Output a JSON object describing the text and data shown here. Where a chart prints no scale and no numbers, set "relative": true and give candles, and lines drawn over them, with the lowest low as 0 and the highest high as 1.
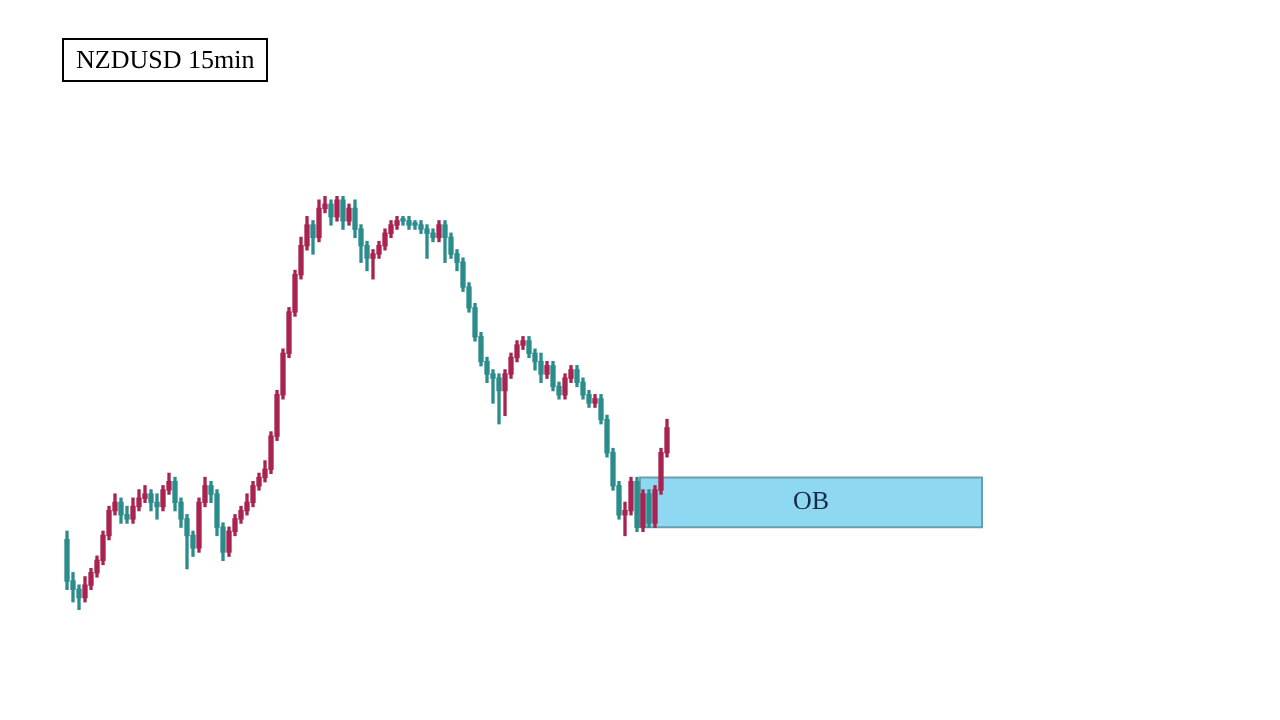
{
  "chart_data": {
    "type": "candlestick",
    "title": "NZDUSD 15min",
    "relative": true,
    "grid": false,
    "legend": false,
    "tick_labels": false,
    "categories": [
      null,
      null,
      null,
      null,
      null,
      null,
      null,
      null,
      null,
      null,
      null,
      null,
      null,
      null,
      null,
      null,
      null,
      null,
      null,
      null,
      null,
      null,
      null,
      null,
      null,
      null,
      null,
      null,
      null,
      null,
      null,
      null,
      null,
      null,
      null,
      null,
      null,
      null,
      null,
      null,
      null,
      null,
      null,
      null,
      null,
      null,
      null,
      null,
      null,
      null,
      null,
      null,
      null,
      null,
      null,
      null,
      null,
      null,
      null,
      null,
      null,
      null,
      null,
      null,
      null,
      null,
      null,
      null,
      null,
      null,
      null,
      null,
      null,
      null,
      null,
      null,
      null,
      null,
      null,
      null,
      null,
      null,
      null,
      null,
      null,
      null,
      null,
      null,
      null,
      null,
      null,
      null,
      null,
      null,
      null,
      null,
      null,
      null,
      null,
      null,
      null
    ],
    "ohlc": [
      [
        0.17,
        0.19,
        0.05,
        0.07
      ],
      [
        0.07,
        0.09,
        0.02,
        0.05
      ],
      [
        0.05,
        0.06,
        0,
        0.03
      ],
      [
        0.03,
        0.08,
        0.02,
        0.06
      ],
      [
        0.06,
        0.1,
        0.05,
        0.09
      ],
      [
        0.09,
        0.13,
        0.08,
        0.12
      ],
      [
        0.12,
        0.19,
        0.11,
        0.18
      ],
      [
        0.18,
        0.25,
        0.17,
        0.24
      ],
      [
        0.24,
        0.28,
        0.23,
        0.26
      ],
      [
        0.26,
        0.27,
        0.21,
        0.23
      ],
      [
        0.23,
        0.25,
        0.21,
        0.22
      ],
      [
        0.22,
        0.27,
        0.21,
        0.25
      ],
      [
        0.25,
        0.29,
        0.24,
        0.27
      ],
      [
        0.27,
        0.3,
        0.26,
        0.28
      ],
      [
        0.28,
        0.29,
        0.24,
        0.26
      ],
      [
        0.26,
        0.28,
        0.22,
        0.25
      ],
      [
        0.25,
        0.3,
        0.24,
        0.29
      ],
      [
        0.29,
        0.33,
        0.28,
        0.31
      ],
      [
        0.31,
        0.32,
        0.24,
        0.26
      ],
      [
        0.26,
        0.27,
        0.2,
        0.22
      ],
      [
        0.22,
        0.23,
        0.1,
        0.18
      ],
      [
        0.18,
        0.19,
        0.13,
        0.15
      ],
      [
        0.15,
        0.27,
        0.14,
        0.26
      ],
      [
        0.26,
        0.32,
        0.25,
        0.3
      ],
      [
        0.3,
        0.31,
        0.26,
        0.28
      ],
      [
        0.28,
        0.29,
        0.18,
        0.2
      ],
      [
        0.2,
        0.21,
        0.12,
        0.14
      ],
      [
        0.14,
        0.2,
        0.13,
        0.19
      ],
      [
        0.19,
        0.23,
        0.18,
        0.22
      ],
      [
        0.22,
        0.25,
        0.21,
        0.24
      ],
      [
        0.24,
        0.28,
        0.23,
        0.26
      ],
      [
        0.26,
        0.31,
        0.25,
        0.3
      ],
      [
        0.3,
        0.33,
        0.29,
        0.32
      ],
      [
        0.32,
        0.36,
        0.31,
        0.34
      ],
      [
        0.34,
        0.43,
        0.33,
        0.42
      ],
      [
        0.42,
        0.53,
        0.41,
        0.52
      ],
      [
        0.52,
        0.63,
        0.51,
        0.62
      ],
      [
        0.62,
        0.73,
        0.61,
        0.72
      ],
      [
        0.72,
        0.82,
        0.71,
        0.81
      ],
      [
        0.81,
        0.9,
        0.8,
        0.88
      ],
      [
        0.88,
        0.95,
        0.87,
        0.93
      ],
      [
        0.93,
        0.94,
        0.86,
        0.9
      ],
      [
        0.9,
        0.99,
        0.89,
        0.97
      ],
      [
        0.97,
        1,
        0.96,
        0.98
      ],
      [
        0.98,
        0.99,
        0.93,
        0.95
      ],
      [
        0.95,
        1,
        0.94,
        0.99
      ],
      [
        0.99,
        1,
        0.92,
        0.94
      ],
      [
        0.94,
        0.98,
        0.93,
        0.97
      ],
      [
        0.97,
        0.99,
        0.9,
        0.92
      ],
      [
        0.92,
        0.93,
        0.84,
        0.88
      ],
      [
        0.88,
        0.89,
        0.82,
        0.85
      ],
      [
        0.85,
        0.87,
        0.8,
        0.86
      ],
      [
        0.86,
        0.89,
        0.85,
        0.88
      ],
      [
        0.88,
        0.92,
        0.87,
        0.91
      ],
      [
        0.91,
        0.94,
        0.9,
        0.93
      ],
      [
        0.93,
        0.95,
        0.92,
        0.94
      ],
      [
        0.94,
        0.95,
        0.93,
        0.94
      ],
      [
        0.94,
        0.95,
        0.92,
        0.93
      ],
      [
        0.93,
        0.94,
        0.92,
        0.93
      ],
      [
        0.93,
        0.94,
        0.91,
        0.92
      ],
      [
        0.92,
        0.93,
        0.85,
        0.91
      ],
      [
        0.91,
        0.92,
        0.89,
        0.9
      ],
      [
        0.9,
        0.94,
        0.89,
        0.93
      ],
      [
        0.93,
        0.94,
        0.84,
        0.9
      ],
      [
        0.9,
        0.91,
        0.85,
        0.86
      ],
      [
        0.86,
        0.87,
        0.82,
        0.84
      ],
      [
        0.84,
        0.85,
        0.77,
        0.78
      ],
      [
        0.78,
        0.79,
        0.72,
        0.73
      ],
      [
        0.73,
        0.74,
        0.65,
        0.66
      ],
      [
        0.66,
        0.67,
        0.59,
        0.6
      ],
      [
        0.6,
        0.61,
        0.55,
        0.57
      ],
      [
        0.57,
        0.58,
        0.5,
        0.56
      ],
      [
        0.56,
        0.57,
        0.45,
        0.53
      ],
      [
        0.53,
        0.58,
        0.47,
        0.57
      ],
      [
        0.57,
        0.62,
        0.56,
        0.61
      ],
      [
        0.61,
        0.65,
        0.6,
        0.64
      ],
      [
        0.64,
        0.66,
        0.63,
        0.65
      ],
      [
        0.65,
        0.66,
        0.61,
        0.62
      ],
      [
        0.62,
        0.63,
        0.58,
        0.6
      ],
      [
        0.6,
        0.62,
        0.55,
        0.57
      ],
      [
        0.57,
        0.6,
        0.56,
        0.59
      ],
      [
        0.59,
        0.6,
        0.53,
        0.54
      ],
      [
        0.54,
        0.55,
        0.51,
        0.52
      ],
      [
        0.52,
        0.57,
        0.51,
        0.56
      ],
      [
        0.56,
        0.59,
        0.55,
        0.58
      ],
      [
        0.58,
        0.59,
        0.54,
        0.55
      ],
      [
        0.55,
        0.56,
        0.51,
        0.52
      ],
      [
        0.52,
        0.53,
        0.49,
        0.5
      ],
      [
        0.5,
        0.52,
        0.49,
        0.51
      ],
      [
        0.51,
        0.52,
        0.45,
        0.46
      ],
      [
        0.46,
        0.47,
        0.37,
        0.38
      ],
      [
        0.38,
        0.39,
        0.29,
        0.3
      ],
      [
        0.3,
        0.31,
        0.22,
        0.23
      ],
      [
        0.23,
        0.26,
        0.18,
        0.24
      ],
      [
        0.24,
        0.32,
        0.23,
        0.31
      ],
      [
        0.31,
        0.32,
        0.19,
        0.2
      ],
      [
        0.2,
        0.29,
        0.19,
        0.28
      ],
      [
        0.28,
        0.29,
        0.2,
        0.21
      ],
      [
        0.21,
        0.3,
        0.2,
        0.29
      ],
      [
        0.29,
        0.39,
        0.28,
        0.38
      ],
      [
        0.38,
        0.46,
        0.37,
        0.44
      ]
    ],
    "colors": [
      "#2b8c8c",
      "#2b8c8c",
      "#2b8c8c",
      "#a8234f",
      "#a8234f",
      "#a8234f",
      "#a8234f",
      "#a8234f",
      "#a8234f",
      "#2b8c8c",
      "#2b8c8c",
      "#a8234f",
      "#a8234f",
      "#a8234f",
      "#2b8c8c",
      "#2b8c8c",
      "#a8234f",
      "#a8234f",
      "#2b8c8c",
      "#2b8c8c",
      "#2b8c8c",
      "#2b8c8c",
      "#a8234f",
      "#a8234f",
      "#2b8c8c",
      "#2b8c8c",
      "#2b8c8c",
      "#a8234f",
      "#a8234f",
      "#a8234f",
      "#a8234f",
      "#a8234f",
      "#a8234f",
      "#a8234f",
      "#a8234f",
      "#a8234f",
      "#a8234f",
      "#a8234f",
      "#a8234f",
      "#a8234f",
      "#a8234f",
      "#2b8c8c",
      "#a8234f",
      "#a8234f",
      "#2b8c8c",
      "#a8234f",
      "#2b8c8c",
      "#a8234f",
      "#2b8c8c",
      "#2b8c8c",
      "#2b8c8c",
      "#a8234f",
      "#a8234f",
      "#a8234f",
      "#a8234f",
      "#a8234f",
      "#2b8c8c",
      "#2b8c8c",
      "#2b8c8c",
      "#2b8c8c",
      "#2b8c8c",
      "#2b8c8c",
      "#a8234f",
      "#2b8c8c",
      "#2b8c8c",
      "#2b8c8c",
      "#2b8c8c",
      "#2b8c8c",
      "#2b8c8c",
      "#2b8c8c",
      "#2b8c8c",
      "#2b8c8c",
      "#2b8c8c",
      "#a8234f",
      "#a8234f",
      "#a8234f",
      "#a8234f",
      "#2b8c8c",
      "#2b8c8c",
      "#2b8c8c",
      "#a8234f",
      "#2b8c8c",
      "#2b8c8c",
      "#a8234f",
      "#a8234f",
      "#2b8c8c",
      "#2b8c8c",
      "#2b8c8c",
      "#a8234f",
      "#2b8c8c",
      "#2b8c8c",
      "#2b8c8c",
      "#2b8c8c",
      "#a8234f",
      "#a8234f",
      "#2b8c8c",
      "#a8234f",
      "#2b8c8c",
      "#a8234f",
      "#a8234f",
      "#a8234f"
    ],
    "bands": [
      {
        "axis": "y",
        "from": 0.2,
        "to": 0.32,
        "label": "OB",
        "color": "#8fd8f2"
      }
    ]
  }
}
